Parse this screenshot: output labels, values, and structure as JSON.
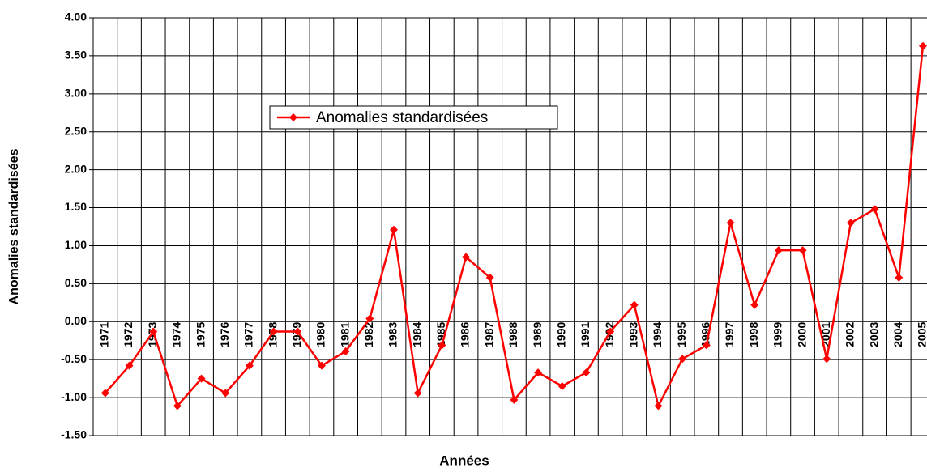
{
  "chart_data": {
    "type": "line",
    "x_label": "Années",
    "y_label": "Anomalies standardisées",
    "categories": [
      "1971",
      "1972",
      "1973",
      "1974",
      "1975",
      "1976",
      "1977",
      "1978",
      "1979",
      "1980",
      "1981",
      "1982",
      "1983",
      "1984",
      "1985",
      "1986",
      "1987",
      "1988",
      "1989",
      "1990",
      "1991",
      "1992",
      "1993",
      "1994",
      "1995",
      "1996",
      "1997",
      "1998",
      "1999",
      "2000",
      "2001",
      "2002",
      "2003",
      "2004",
      "2005"
    ],
    "series": [
      {
        "name": "Anomalies standardisées",
        "color": "#ff0000",
        "values": [
          -0.94,
          -0.58,
          -0.13,
          -1.11,
          -0.75,
          -0.94,
          -0.58,
          -0.13,
          -0.13,
          -0.58,
          -0.39,
          0.04,
          1.21,
          -0.94,
          -0.31,
          0.85,
          0.58,
          -1.03,
          -0.67,
          -0.85,
          -0.67,
          -0.13,
          0.22,
          -1.11,
          -0.49,
          -0.31,
          1.3,
          0.22,
          0.94,
          0.94,
          -0.49,
          1.3,
          1.48,
          0.58,
          3.63
        ]
      }
    ],
    "ylim": [
      -1.5,
      4.0
    ],
    "yticks": [
      {
        "value": -1.5,
        "label": "-1.50"
      },
      {
        "value": -1.0,
        "label": "-1.00"
      },
      {
        "value": -0.5,
        "label": "-0.50"
      },
      {
        "value": 0,
        "label": "0.00"
      },
      {
        "value": 0.5,
        "label": "0.50"
      },
      {
        "value": 1.0,
        "label": "1.00"
      },
      {
        "value": 1.5,
        "label": "1.50"
      },
      {
        "value": 2.0,
        "label": "2.00"
      },
      {
        "value": 2.5,
        "label": "2.50"
      },
      {
        "value": 3.0,
        "label": "3.00"
      },
      {
        "value": 3.5,
        "label": "3.50"
      },
      {
        "value": 4.0,
        "label": "4.00"
      }
    ],
    "grid": true
  }
}
